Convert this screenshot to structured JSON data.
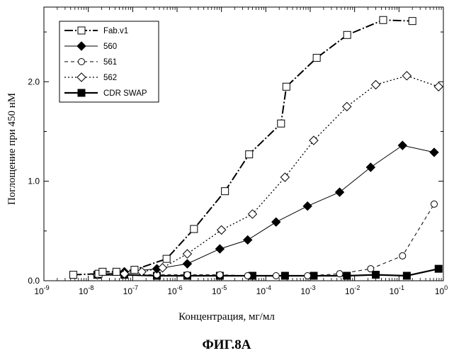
{
  "figure_caption": "ФИГ.8А",
  "chart_data": {
    "type": "line",
    "title": "",
    "xlabel": "Концентрация, мг/мл",
    "ylabel": "Поглощение при 450 нМ",
    "xscale": "log",
    "xlim": [
      1e-09,
      1
    ],
    "ylim": [
      0,
      2.75
    ],
    "x_ticks": [
      {
        "value": 1e-09,
        "base": "10",
        "exp": "-9"
      },
      {
        "value": 1e-08,
        "base": "10",
        "exp": "-8"
      },
      {
        "value": 1e-07,
        "base": "10",
        "exp": "-7"
      },
      {
        "value": 1e-06,
        "base": "10",
        "exp": "-6"
      },
      {
        "value": 1e-05,
        "base": "10",
        "exp": "-5"
      },
      {
        "value": 0.0001,
        "base": "10",
        "exp": "-4"
      },
      {
        "value": 0.001,
        "base": "10",
        "exp": "-3"
      },
      {
        "value": 0.01,
        "base": "10",
        "exp": "-2"
      },
      {
        "value": 0.1,
        "base": "10",
        "exp": "-1"
      },
      {
        "value": 1,
        "base": "10",
        "exp": "0"
      }
    ],
    "y_ticks": [
      {
        "value": 0,
        "label": "0.0"
      },
      {
        "value": 1,
        "label": "1.0"
      },
      {
        "value": 2,
        "label": "2.0"
      }
    ],
    "grid": false,
    "legend_position": "top-left",
    "series": [
      {
        "name": "Fab.v1",
        "marker": "open-square",
        "dash": "12,3,2,3",
        "stroke_width": 2,
        "points": [
          [
            4.6e-09,
            0.06
          ],
          [
            1.7e-08,
            0.07
          ],
          [
            2.1e-08,
            0.09
          ],
          [
            4.3e-08,
            0.09
          ],
          [
            1.1e-07,
            0.11
          ],
          [
            5.8e-07,
            0.22
          ],
          [
            2.4e-06,
            0.52
          ],
          [
            1.2e-05,
            0.9
          ],
          [
            4.2e-05,
            1.27
          ],
          [
            0.00022,
            1.58
          ],
          [
            0.00029,
            1.95
          ],
          [
            0.0014,
            2.24
          ],
          [
            0.0068,
            2.47
          ],
          [
            0.044,
            2.62
          ],
          [
            0.2,
            2.61
          ]
        ]
      },
      {
        "name": "560",
        "marker": "filled-diamond",
        "dash": "",
        "stroke_width": 1,
        "points": [
          [
            1.6e-08,
            0.06
          ],
          [
            6.5e-08,
            0.09
          ],
          [
            3.5e-07,
            0.12
          ],
          [
            1.7e-06,
            0.17
          ],
          [
            9.2e-06,
            0.32
          ],
          [
            3.9e-05,
            0.41
          ],
          [
            0.00017,
            0.59
          ],
          [
            0.00087,
            0.75
          ],
          [
            0.0046,
            0.89
          ],
          [
            0.023,
            1.14
          ],
          [
            0.12,
            1.36
          ],
          [
            0.62,
            1.29
          ]
        ]
      },
      {
        "name": "561",
        "marker": "open-circle",
        "dash": "5,4",
        "stroke_width": 1,
        "points": [
          [
            1.6e-08,
            0.06
          ],
          [
            6.5e-08,
            0.06
          ],
          [
            3.5e-07,
            0.06
          ],
          [
            1.7e-06,
            0.06
          ],
          [
            9.2e-06,
            0.06
          ],
          [
            3.9e-05,
            0.05
          ],
          [
            0.00017,
            0.05
          ],
          [
            0.00087,
            0.05
          ],
          [
            0.0046,
            0.07
          ],
          [
            0.023,
            0.12
          ],
          [
            0.12,
            0.25
          ],
          [
            0.62,
            0.77
          ]
        ]
      },
      {
        "name": "562",
        "marker": "open-diamond",
        "dash": "2,3",
        "stroke_width": 1.3,
        "points": [
          [
            1.6e-08,
            0.06
          ],
          [
            6.5e-08,
            0.07
          ],
          [
            1.6e-07,
            0.09
          ],
          [
            4.7e-07,
            0.13
          ],
          [
            1.7e-06,
            0.27
          ],
          [
            1e-05,
            0.51
          ],
          [
            5e-05,
            0.67
          ],
          [
            0.00027,
            1.04
          ],
          [
            0.0012,
            1.41
          ],
          [
            0.0067,
            1.75
          ],
          [
            0.03,
            1.97
          ],
          [
            0.15,
            2.06
          ],
          [
            0.78,
            1.95
          ]
        ]
      },
      {
        "name": "CDR SWAP",
        "marker": "filled-square",
        "dash": "",
        "stroke_width": 2.2,
        "points": [
          [
            1.6e-08,
            0.06
          ],
          [
            6.5e-08,
            0.06
          ],
          [
            3.5e-07,
            0.05
          ],
          [
            1.7e-06,
            0.05
          ],
          [
            9.2e-06,
            0.05
          ],
          [
            5e-05,
            0.05
          ],
          [
            0.00027,
            0.05
          ],
          [
            0.0012,
            0.05
          ],
          [
            0.0067,
            0.05
          ],
          [
            0.03,
            0.06
          ],
          [
            0.15,
            0.05
          ],
          [
            0.78,
            0.12
          ]
        ]
      }
    ]
  }
}
